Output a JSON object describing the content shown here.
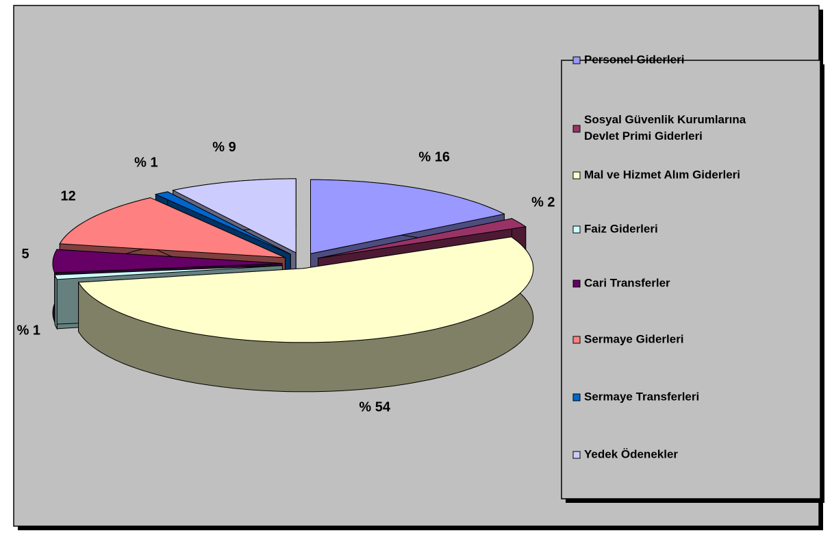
{
  "chart_data": {
    "type": "pie3d",
    "categories": [
      "Personel Giderleri",
      "Sosyal Güvenlik Kurumlarına Devlet Primi Giderleri",
      "Mal ve Hizmet Alım Giderleri",
      "Faiz Giderleri",
      "Cari Transferler",
      "Sermaye Giderleri",
      "Sermaye Transferleri",
      "Yedek Ödenekler"
    ],
    "values": [
      16,
      2,
      54,
      1,
      5,
      12,
      1,
      9
    ],
    "value_labels": [
      "% 16",
      "% 2",
      "% 54",
      "% 1",
      "5",
      "12",
      "% 1",
      "% 9"
    ],
    "colors": [
      "#9999ff",
      "#993366",
      "#ffffcc",
      "#ccffff",
      "#660066",
      "#ff8080",
      "#0066cc",
      "#ccccff"
    ],
    "legend": "right"
  }
}
